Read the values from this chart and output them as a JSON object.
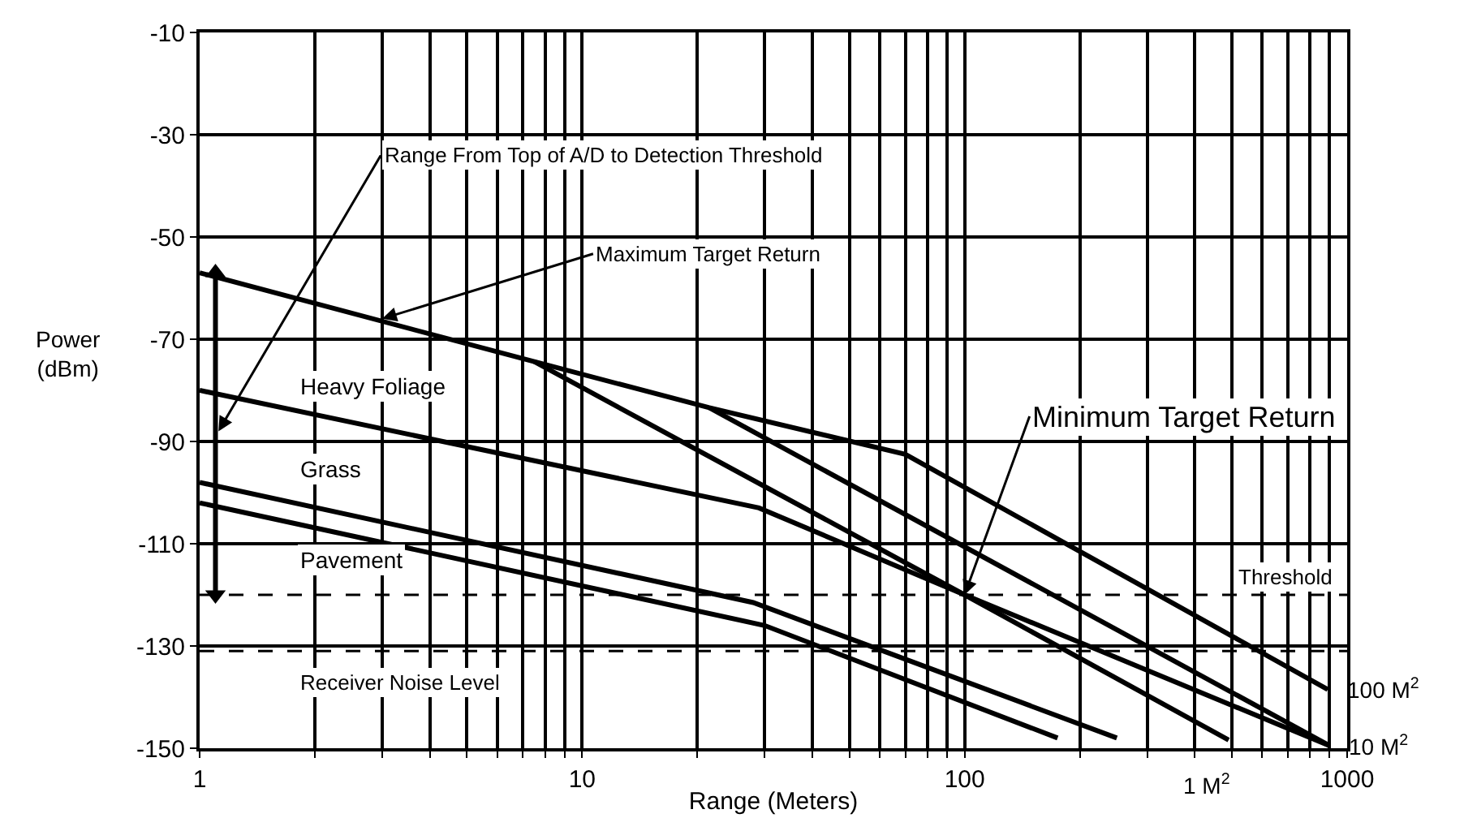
{
  "chart_data": {
    "type": "line",
    "xlabel": "Range (Meters)",
    "ylabel": "Power\n(dBm)",
    "log": "x",
    "grid": true,
    "legend": false,
    "marker": "none",
    "line_style": "solid",
    "xlim": [
      1,
      1000
    ],
    "ylim": [
      -150,
      -10
    ],
    "xticks": [
      1,
      {
        "value": 2,
        "label": null
      },
      {
        "value": 3,
        "label": null
      },
      {
        "value": 4,
        "label": null
      },
      {
        "value": 5,
        "label": null
      },
      {
        "value": 6,
        "label": null
      },
      {
        "value": 7,
        "label": null
      },
      {
        "value": 8,
        "label": null
      },
      {
        "value": 9,
        "label": null
      },
      10,
      {
        "value": 20,
        "label": null
      },
      {
        "value": 30,
        "label": null
      },
      {
        "value": 40,
        "label": null
      },
      {
        "value": 50,
        "label": null
      },
      {
        "value": 60,
        "label": null
      },
      {
        "value": 70,
        "label": null
      },
      {
        "value": 80,
        "label": null
      },
      {
        "value": 90,
        "label": null
      },
      100,
      {
        "value": 200,
        "label": null
      },
      {
        "value": 300,
        "label": null
      },
      {
        "value": 400,
        "label": null
      },
      {
        "value": 500,
        "label": null
      },
      {
        "value": 600,
        "label": null
      },
      {
        "value": 700,
        "label": null
      },
      {
        "value": 800,
        "label": null
      },
      {
        "value": 900,
        "label": null
      },
      1000
    ],
    "yticks": [
      -10,
      -30,
      -50,
      -70,
      -90,
      -110,
      -130,
      -150
    ],
    "series": [
      {
        "name": "100 M$^{2}$",
        "color": "#000000",
        "x": [
          1,
          7.5,
          21.5,
          70,
          890
        ],
        "values": [
          -57,
          -74.4,
          -83.4,
          -92.5,
          -138.5
        ]
      },
      {
        "name": "1 M$^{2}$",
        "color": "#000000",
        "x": [
          7.5,
          100,
          490
        ],
        "values": [
          -74.4,
          -120,
          -148.4
        ]
      },
      {
        "name": "10 M$^{2}$",
        "color": "#000000",
        "x": [
          21.5,
          900
        ],
        "values": [
          -83.4,
          -149.5
        ]
      },
      {
        "color": "#000000",
        "x": [
          1,
          29,
          100,
          900
        ],
        "values": [
          -80,
          -103,
          -120,
          -149.5
        ]
      },
      {
        "color": "#000000",
        "x": [
          1,
          28,
          250
        ],
        "values": [
          -98,
          -121.5,
          -148
        ]
      },
      {
        "color": "#000000",
        "x": [
          1,
          30,
          175
        ],
        "values": [
          -102,
          -126,
          -148
        ]
      },
      {
        "color": "#000000",
        "x": [
          1.1,
          1.1
        ],
        "values": [
          -57,
          -120
        ],
        "marker": "triangle"
      }
    ],
    "ref_lines": [
      {
        "axis": "y",
        "value": -120,
        "label": "Threshold",
        "color": "#000000",
        "line_style": "dashed"
      },
      {
        "axis": "y",
        "value": -131,
        "label": "Receiver Noise Level",
        "color": "#000000",
        "line_style": "dashed"
      }
    ],
    "annotations": [
      {
        "text": "Maximum Target Return",
        "x": 3,
        "y": -66
      },
      {
        "text": "Minimum Target Return",
        "x": 100,
        "y": -120
      },
      {
        "text": "Range From Top of A/D to Detection Threshold",
        "x": 1.12,
        "y": -88
      },
      "Heavy Foliage",
      "Grass",
      "Pavement"
    ]
  }
}
